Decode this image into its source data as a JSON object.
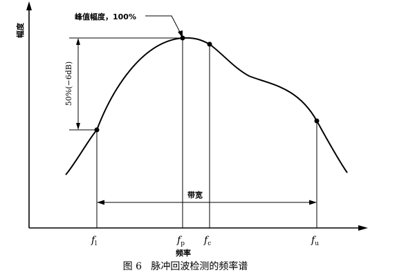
{
  "y_axis_label": "幅度",
  "x_axis_label": "频率",
  "peak_label": "峰值幅度，100%",
  "half_amplitude_label": "50%(−6dB)",
  "bandwidth_label": "带宽",
  "freq_markers": [
    {
      "symbol": "f",
      "subscript": "l"
    },
    {
      "symbol": "f",
      "subscript": "p"
    },
    {
      "symbol": "f",
      "subscript": "c"
    },
    {
      "symbol": "f",
      "subscript": "u"
    }
  ],
  "caption": "图 6   脉冲回波检测的频率谱"
}
